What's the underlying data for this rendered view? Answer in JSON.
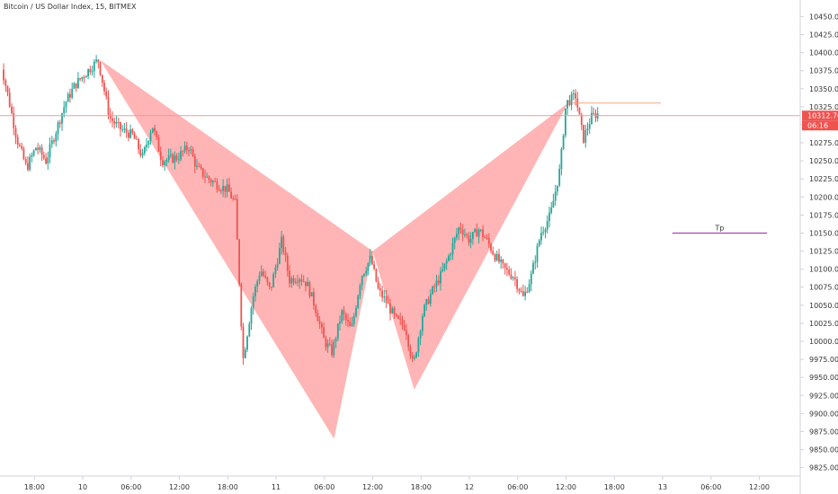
{
  "header": {
    "title": "Bitcoin / US Dollar Index, 15, BITMEX"
  },
  "colors": {
    "up": "#26a69a",
    "down": "#ef5350",
    "pattern": "#ffa0a0",
    "tp": "#9c27b0",
    "price_line": "#ef9a9a"
  },
  "price_label": {
    "price": "10312.70",
    "countdown": "06:16"
  },
  "tp_label": "Tp",
  "chart_data": {
    "type": "candlestick",
    "title": "Bitcoin / US Dollar Index, 15, BITMEX",
    "ylim": [
      9800,
      10475
    ],
    "yticks": [
      "10450.00",
      "10425.00",
      "10400.00",
      "10375.00",
      "10350.00",
      "10325.00",
      "10300.00",
      "10275.00",
      "10250.00",
      "10225.00",
      "10200.00",
      "10175.00",
      "10150.00",
      "10125.00",
      "10100.00",
      "10075.00",
      "10050.00",
      "10025.00",
      "10000.00",
      "9975.00",
      "9950.00",
      "9925.00",
      "9900.00",
      "9875.00",
      "9850.00",
      "9825.00"
    ],
    "xticks": [
      {
        "label": "18:00",
        "t": -0.25
      },
      {
        "label": "10",
        "t": 0
      },
      {
        "label": "06:00",
        "t": 0.25
      },
      {
        "label": "12:00",
        "t": 0.5
      },
      {
        "label": "18:00",
        "t": 0.75
      },
      {
        "label": "11",
        "t": 1
      },
      {
        "label": "06:00",
        "t": 1.25
      },
      {
        "label": "12:00",
        "t": 1.5
      },
      {
        "label": "18:00",
        "t": 1.75
      },
      {
        "label": "12",
        "t": 2
      },
      {
        "label": "06:00",
        "t": 2.25
      },
      {
        "label": "12:00",
        "t": 2.5
      },
      {
        "label": "18:00",
        "t": 2.75
      },
      {
        "label": "13",
        "t": 3
      },
      {
        "label": "06:00",
        "t": 3.25
      },
      {
        "label": "12:00",
        "t": 3.5
      }
    ],
    "last_price": 10312.7,
    "pattern": {
      "X": {
        "t": 0.09,
        "p": 10390
      },
      "A": {
        "t": 1.3,
        "p": 9865
      },
      "B": {
        "t": 1.5,
        "p": 10125
      },
      "C": {
        "t": 1.715,
        "p": 9933
      },
      "D": {
        "t": 2.51,
        "p": 10330
      }
    },
    "tp_level": {
      "price": 10150,
      "t_start": 3.05,
      "t_end": 3.54,
      "label": "Tp"
    },
    "d_line": {
      "price": 10330,
      "t_start": 2.53,
      "t_end": 2.99
    },
    "anchors": [
      [
        -0.43,
        10405
      ],
      [
        -0.38,
        10345
      ],
      [
        -0.33,
        10280
      ],
      [
        -0.28,
        10240
      ],
      [
        -0.23,
        10270
      ],
      [
        -0.18,
        10250
      ],
      [
        -0.13,
        10290
      ],
      [
        -0.08,
        10330
      ],
      [
        -0.03,
        10355
      ],
      [
        0.02,
        10370
      ],
      [
        0.09,
        10390
      ],
      [
        0.15,
        10310
      ],
      [
        0.2,
        10295
      ],
      [
        0.27,
        10285
      ],
      [
        0.32,
        10255
      ],
      [
        0.37,
        10300
      ],
      [
        0.42,
        10250
      ],
      [
        0.5,
        10255
      ],
      [
        0.56,
        10270
      ],
      [
        0.6,
        10240
      ],
      [
        0.66,
        10225
      ],
      [
        0.72,
        10215
      ],
      [
        0.76,
        10210
      ],
      [
        0.8,
        10190
      ],
      [
        0.84,
        9975
      ],
      [
        0.89,
        10060
      ],
      [
        0.93,
        10100
      ],
      [
        0.98,
        10070
      ],
      [
        1.04,
        10140
      ],
      [
        1.08,
        10085
      ],
      [
        1.13,
        10090
      ],
      [
        1.17,
        10080
      ],
      [
        1.21,
        10050
      ],
      [
        1.26,
        10000
      ],
      [
        1.3,
        9985
      ],
      [
        1.35,
        10040
      ],
      [
        1.4,
        10015
      ],
      [
        1.45,
        10090
      ],
      [
        1.5,
        10115
      ],
      [
        1.54,
        10070
      ],
      [
        1.58,
        10055
      ],
      [
        1.63,
        10030
      ],
      [
        1.68,
        10020
      ],
      [
        1.72,
        9965
      ],
      [
        1.77,
        10040
      ],
      [
        1.81,
        10065
      ],
      [
        1.86,
        10090
      ],
      [
        1.9,
        10115
      ],
      [
        1.96,
        10160
      ],
      [
        2.01,
        10140
      ],
      [
        2.06,
        10155
      ],
      [
        2.1,
        10140
      ],
      [
        2.14,
        10120
      ],
      [
        2.19,
        10100
      ],
      [
        2.24,
        10090
      ],
      [
        2.29,
        10060
      ],
      [
        2.33,
        10090
      ],
      [
        2.38,
        10150
      ],
      [
        2.43,
        10175
      ],
      [
        2.48,
        10240
      ],
      [
        2.51,
        10330
      ],
      [
        2.56,
        10340
      ],
      [
        2.6,
        10280
      ],
      [
        2.64,
        10310
      ],
      [
        2.67,
        10315
      ]
    ]
  }
}
